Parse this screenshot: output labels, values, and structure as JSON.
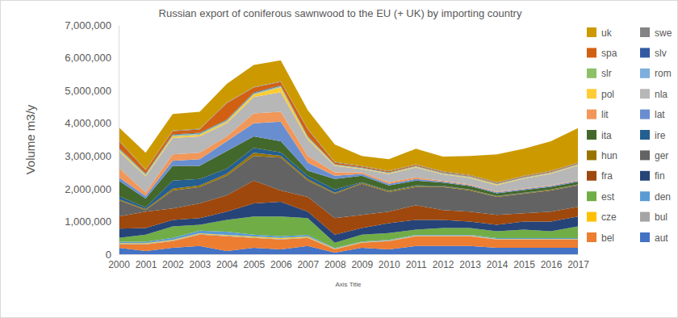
{
  "chart_data": {
    "type": "area",
    "stacked": true,
    "grid": false,
    "legend": "right",
    "title": "Russian export of coniferous sawnwood to the EU (+ UK) by importing country",
    "x_label": "Axis Title",
    "y_label": "Volume m3/y",
    "categories": [
      "2000",
      "2001",
      "2002",
      "2003",
      "2004",
      "2005",
      "2006",
      "2007",
      "2008",
      "2009",
      "2010",
      "2011",
      "2012",
      "2013",
      "2014",
      "2015",
      "2016",
      "2017"
    ],
    "ylim": [
      0,
      7000000
    ],
    "yticks": [
      0,
      {
        "value": 1000000,
        "label": "1,000,000"
      },
      {
        "value": 2000000,
        "label": "2,000,000"
      },
      {
        "value": 3000000,
        "label": "3,000,000"
      },
      {
        "value": 4000000,
        "label": "4,000,000"
      },
      {
        "value": 5000000,
        "label": "5,000,000"
      },
      {
        "value": 6000000,
        "label": "6,000,000"
      },
      {
        "value": 7000000,
        "label": "7,000,000"
      }
    ],
    "series": [
      {
        "name": "aut",
        "color": "#4472C4",
        "values": [
          200000,
          100000,
          200000,
          250000,
          100000,
          200000,
          150000,
          250000,
          50000,
          200000,
          150000,
          250000,
          250000,
          250000,
          200000,
          200000,
          200000,
          200000
        ]
      },
      {
        "name": "bel",
        "color": "#ED7D31",
        "values": [
          100000,
          200000,
          200000,
          350000,
          450000,
          300000,
          300000,
          250000,
          100000,
          150000,
          250000,
          300000,
          300000,
          300000,
          250000,
          250000,
          250000,
          250000
        ]
      },
      {
        "name": "bul",
        "color": "#A5A5A5",
        "values": [
          20000,
          20000,
          20000,
          20000,
          20000,
          20000,
          20000,
          20000,
          10000,
          10000,
          10000,
          10000,
          10000,
          10000,
          10000,
          10000,
          10000,
          10000
        ]
      },
      {
        "name": "cze",
        "color": "#FFC000",
        "values": [
          20000,
          20000,
          20000,
          20000,
          20000,
          20000,
          30000,
          20000,
          10000,
          10000,
          10000,
          10000,
          10000,
          10000,
          10000,
          10000,
          10000,
          10000
        ]
      },
      {
        "name": "den",
        "color": "#5B9BD5",
        "values": [
          40000,
          40000,
          60000,
          80000,
          100000,
          60000,
          50000,
          50000,
          20000,
          20000,
          20000,
          20000,
          20000,
          20000,
          20000,
          20000,
          20000,
          20000
        ]
      },
      {
        "name": "est",
        "color": "#70AD47",
        "values": [
          120000,
          220000,
          350000,
          180000,
          360000,
          550000,
          600000,
          510000,
          160000,
          210000,
          210000,
          160000,
          210000,
          210000,
          210000,
          260000,
          210000,
          360000
        ]
      },
      {
        "name": "fin",
        "color": "#264478",
        "values": [
          280000,
          200000,
          200000,
          200000,
          250000,
          400000,
          450000,
          200000,
          250000,
          200000,
          300000,
          300000,
          250000,
          200000,
          200000,
          250000,
          300000,
          300000
        ]
      },
      {
        "name": "fra",
        "color": "#9E480E",
        "values": [
          370000,
          500000,
          350000,
          450000,
          500000,
          700000,
          350000,
          450000,
          500000,
          400000,
          350000,
          450000,
          300000,
          300000,
          300000,
          250000,
          300000,
          300000
        ]
      },
      {
        "name": "ger",
        "color": "#636363",
        "values": [
          500000,
          50000,
          550000,
          500000,
          600000,
          750000,
          1000000,
          500000,
          750000,
          950000,
          600000,
          550000,
          700000,
          650000,
          550000,
          600000,
          650000,
          650000
        ]
      },
      {
        "name": "hun",
        "color": "#997300",
        "values": [
          30000,
          30000,
          50000,
          50000,
          60000,
          100000,
          60000,
          50000,
          30000,
          30000,
          30000,
          30000,
          20000,
          20000,
          20000,
          20000,
          20000,
          20000
        ]
      },
      {
        "name": "ire",
        "color": "#255E91",
        "values": [
          100000,
          50000,
          250000,
          200000,
          150000,
          150000,
          100000,
          100000,
          100000,
          20000,
          20000,
          20000,
          20000,
          10000,
          10000,
          10000,
          10000,
          10000
        ]
      },
      {
        "name": "ita",
        "color": "#43682B",
        "values": [
          470000,
          270000,
          450000,
          400000,
          540000,
          350000,
          340000,
          150000,
          320000,
          200000,
          150000,
          150000,
          100000,
          100000,
          80000,
          80000,
          80000,
          80000
        ]
      },
      {
        "name": "lat",
        "color": "#698ED0",
        "values": [
          100000,
          80000,
          150000,
          200000,
          300000,
          400000,
          600000,
          250000,
          100000,
          50000,
          50000,
          50000,
          30000,
          30000,
          30000,
          30000,
          30000,
          30000
        ]
      },
      {
        "name": "lit",
        "color": "#F1975A",
        "values": [
          300000,
          100000,
          200000,
          200000,
          150000,
          300000,
          300000,
          200000,
          100000,
          50000,
          50000,
          50000,
          20000,
          20000,
          20000,
          20000,
          20000,
          20000
        ]
      },
      {
        "name": "nla",
        "color": "#B7B7B7",
        "values": [
          500000,
          500000,
          500000,
          500000,
          400000,
          500000,
          600000,
          500000,
          200000,
          100000,
          250000,
          300000,
          200000,
          200000,
          200000,
          300000,
          350000,
          450000
        ]
      },
      {
        "name": "pol",
        "color": "#FFCD33",
        "values": [
          50000,
          30000,
          50000,
          50000,
          50000,
          80000,
          150000,
          50000,
          20000,
          20000,
          20000,
          20000,
          20000,
          20000,
          20000,
          20000,
          20000,
          20000
        ]
      },
      {
        "name": "rom",
        "color": "#7CAFDD",
        "values": [
          20000,
          20000,
          20000,
          20000,
          20000,
          20000,
          20000,
          20000,
          10000,
          10000,
          10000,
          10000,
          10000,
          10000,
          10000,
          10000,
          10000,
          10000
        ]
      },
      {
        "name": "slr",
        "color": "#8CC168",
        "values": [
          20000,
          20000,
          20000,
          20000,
          20000,
          20000,
          20000,
          20000,
          10000,
          10000,
          10000,
          10000,
          10000,
          10000,
          10000,
          10000,
          10000,
          10000
        ]
      },
      {
        "name": "slv",
        "color": "#335AA1",
        "values": [
          20000,
          20000,
          20000,
          20000,
          20000,
          20000,
          20000,
          20000,
          10000,
          10000,
          10000,
          10000,
          10000,
          10000,
          10000,
          10000,
          10000,
          10000
        ]
      },
      {
        "name": "spa",
        "color": "#D26012",
        "values": [
          200000,
          100000,
          100000,
          100000,
          500000,
          150000,
          100000,
          200000,
          50000,
          30000,
          30000,
          30000,
          20000,
          20000,
          20000,
          20000,
          20000,
          20000
        ]
      },
      {
        "name": "swe",
        "color": "#848484",
        "values": [
          20000,
          20000,
          20000,
          20000,
          20000,
          20000,
          20000,
          20000,
          20000,
          20000,
          20000,
          20000,
          20000,
          20000,
          20000,
          20000,
          20000,
          20000
        ]
      },
      {
        "name": "uk",
        "color": "#CC9A00",
        "values": [
          400000,
          510000,
          500000,
          520000,
          570000,
          670000,
          640000,
          570000,
          530000,
          300000,
          350000,
          470000,
          450000,
          580000,
          850000,
          820000,
          900000,
          1050000
        ]
      }
    ]
  }
}
